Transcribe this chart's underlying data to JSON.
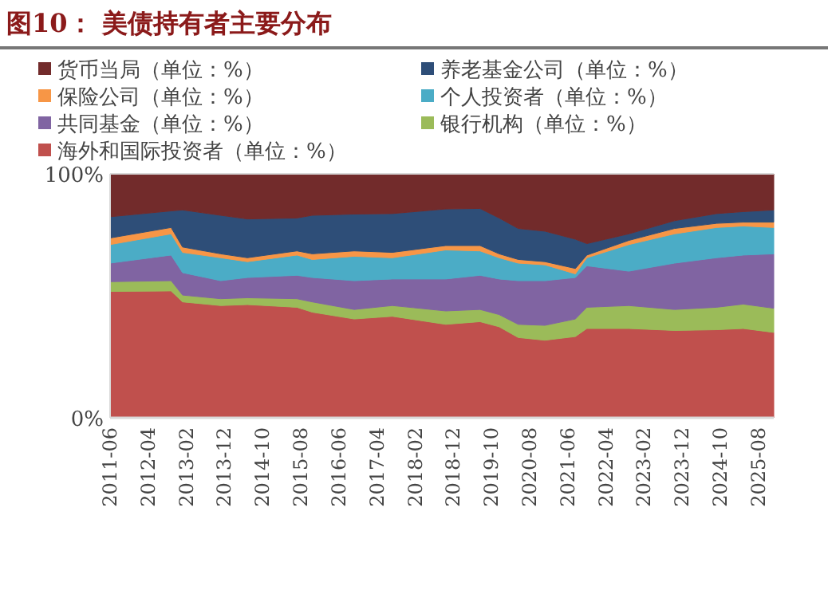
{
  "chart_data": {
    "type": "area",
    "stacked": true,
    "title": "图10：  美债持有者主要分布",
    "x": [
      "2011-06",
      "2012-10",
      "2013-01",
      "2013-11",
      "2014-06",
      "2015-07",
      "2015-11",
      "2016-10",
      "2017-08",
      "2018-10",
      "2019-07",
      "2019-12",
      "2020-05",
      "2020-12",
      "2021-08",
      "2021-11",
      "2022-10",
      "2023-10",
      "2024-09",
      "2025-04",
      "2025-12"
    ],
    "series": [
      {
        "name": "海外和国际投资者（单位：%）",
        "color": "#c0504d",
        "values": [
          51.8,
          52.0,
          47.5,
          46.0,
          46.4,
          45.3,
          43.3,
          40.5,
          41.6,
          38.3,
          39.4,
          37.3,
          32.9,
          31.8,
          33.3,
          36.6,
          36.6,
          35.8,
          36.1,
          36.6,
          35.0
        ]
      },
      {
        "name": "银行机构（单位：%）",
        "color": "#9bbb59",
        "values": [
          4.0,
          4.2,
          2.8,
          2.8,
          2.8,
          3.5,
          4.2,
          3.9,
          4.4,
          5.5,
          5.0,
          5.0,
          5.4,
          6.1,
          7.2,
          8.7,
          9.4,
          8.6,
          9.2,
          10.0,
          9.9
        ]
      },
      {
        "name": "共同基金（单位：%）",
        "color": "#8064a2",
        "values": [
          7.6,
          10.5,
          9.2,
          7.4,
          8.3,
          9.6,
          10.0,
          11.8,
          10.9,
          13.1,
          14.0,
          14.6,
          17.9,
          18.3,
          17.0,
          17.0,
          14.1,
          19.0,
          20.3,
          20.1,
          22.3
        ]
      },
      {
        "name": "个人投资者（单位：%）",
        "color": "#4bacc6",
        "values": [
          7.6,
          8.7,
          8.3,
          9.4,
          6.5,
          8.3,
          7.4,
          10.0,
          8.7,
          11.9,
          10.0,
          8.7,
          7.2,
          6.5,
          1.5,
          3.3,
          10.9,
          12.0,
          12.4,
          11.9,
          10.8
        ]
      },
      {
        "name": "保险公司（单位：%）",
        "color": "#f79646",
        "values": [
          2.7,
          2.6,
          2.2,
          1.6,
          1.6,
          1.7,
          2.3,
          2.2,
          2.2,
          1.8,
          2.2,
          1.6,
          1.5,
          1.3,
          2.2,
          1.1,
          1.7,
          2.2,
          1.7,
          1.6,
          2.2
        ]
      },
      {
        "name": "养老基金公司（单位：%）",
        "color": "#2e4e78",
        "values": [
          8.7,
          6.8,
          15.2,
          15.8,
          15.9,
          13.5,
          15.8,
          15.1,
          15.9,
          15.0,
          15.2,
          14.7,
          12.7,
          12.5,
          12.0,
          4.7,
          2.7,
          3.2,
          4.0,
          4.3,
          5.0
        ]
      },
      {
        "name": "货币当局（单位：%）",
        "color": "#722b2b",
        "values": [
          17.6,
          15.2,
          14.8,
          17.0,
          18.5,
          18.1,
          17.0,
          16.5,
          16.3,
          14.4,
          14.2,
          18.1,
          22.4,
          23.5,
          26.8,
          28.6,
          24.6,
          19.2,
          16.3,
          15.5,
          14.8
        ]
      }
    ],
    "ylim": [
      0,
      100
    ],
    "yticks": [
      {
        "value": 0,
        "label": "0%"
      },
      {
        "value": 100,
        "label": "100%"
      }
    ],
    "xlim": [
      "2011-06",
      "2025-12"
    ],
    "xticks": [
      "2011-06",
      "2012-04",
      "2013-02",
      "2013-12",
      "2014-10",
      "2015-08",
      "2016-06",
      "2017-04",
      "2018-02",
      "2018-12",
      "2019-10",
      "2020-08",
      "2021-06",
      "2022-04",
      "2023-02",
      "2023-12",
      "2024-10",
      "2025-08"
    ],
    "legend": "top"
  }
}
